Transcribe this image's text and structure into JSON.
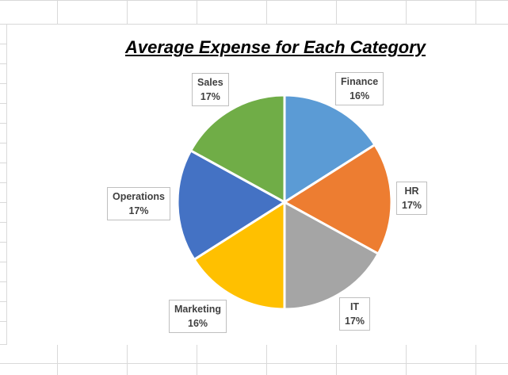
{
  "chart_data": {
    "type": "pie",
    "title": "Average Expense for Each Category",
    "slices": [
      {
        "name": "Finance",
        "percent_label": "16%",
        "color": "#5b9bd5"
      },
      {
        "name": "HR",
        "percent_label": "17%",
        "color": "#ed7d31"
      },
      {
        "name": "IT",
        "percent_label": "17%",
        "color": "#a5a5a5"
      },
      {
        "name": "Marketing",
        "percent_label": "16%",
        "color": "#ffc000"
      },
      {
        "name": "Operations",
        "percent_label": "17%",
        "color": "#4472c4"
      },
      {
        "name": "Sales",
        "percent_label": "17%",
        "color": "#70ad47"
      }
    ],
    "legend": "none",
    "data_labels": "callouts"
  },
  "colors": {
    "gridline": "#d9d9d9",
    "callout_border": "#bfbfbf",
    "callout_text": "#404040"
  }
}
